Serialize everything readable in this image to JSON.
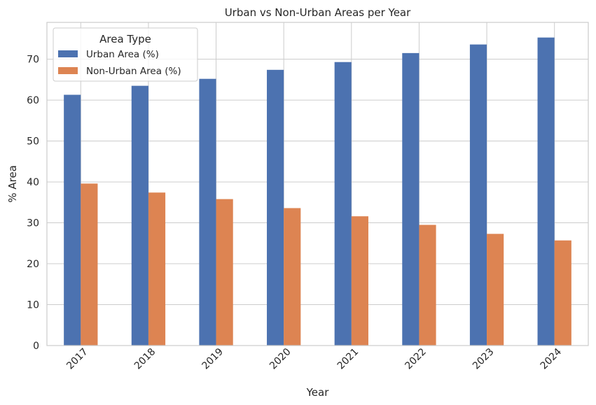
{
  "chart_data": {
    "type": "bar",
    "title": "Urban vs Non-Urban Areas per Year",
    "xlabel": "Year",
    "ylabel": "% Area",
    "categories": [
      "2017",
      "2018",
      "2019",
      "2020",
      "2021",
      "2022",
      "2023",
      "2024"
    ],
    "series": [
      {
        "name": "Urban Area (%)",
        "color": "#4c72b0",
        "values": [
          61.3,
          63.5,
          65.2,
          67.4,
          69.3,
          71.5,
          73.6,
          75.3
        ]
      },
      {
        "name": "Non-Urban Area (%)",
        "color": "#dd8452",
        "values": [
          39.6,
          37.4,
          35.8,
          33.6,
          31.6,
          29.5,
          27.3,
          25.7
        ]
      }
    ],
    "yticks": [
      0,
      10,
      20,
      30,
      40,
      50,
      60,
      70
    ],
    "ylim": [
      0,
      79
    ],
    "legend": {
      "title": "Area Type",
      "position": "top-left"
    },
    "grid": true
  }
}
